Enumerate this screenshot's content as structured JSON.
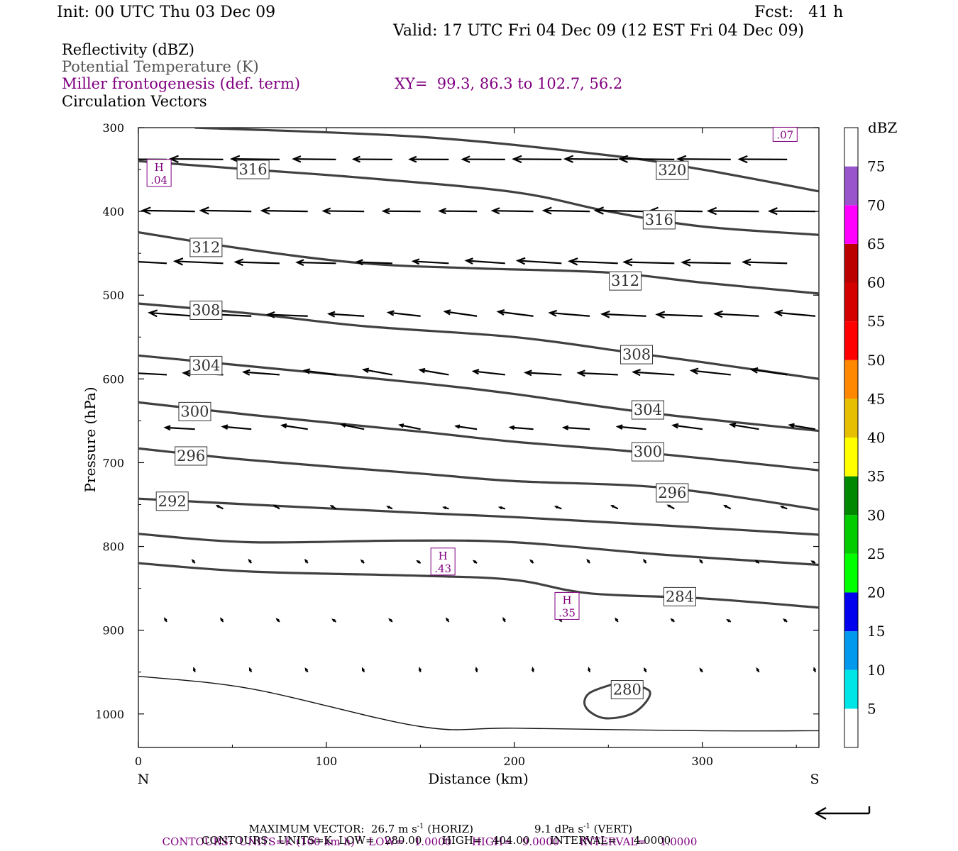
{
  "header": {
    "init": "Init: 00 UTC Thu 03 Dec 09",
    "fcst": "Fcst:   41 h",
    "valid": "Valid: 17 UTC Fri 04 Dec 09 (12 EST Fri 04 Dec 09)"
  },
  "legend": {
    "reflectivity": "Reflectivity (dBZ)",
    "theta": "Potential Temperature (K)",
    "frontogenesis": "Miller frontogenesis (def. term)",
    "xy": "XY=  99.3, 86.3 to 102.7, 56.2",
    "vectors": "Circulation Vectors"
  },
  "colors": {
    "theta": "#404040",
    "frontogenesis": "#800080",
    "vectors": "#000000"
  },
  "chart_data": {
    "type": "cross-section",
    "xlabel": "Distance (km)",
    "ylabel": "Pressure (hPa)",
    "xlim": [
      0,
      362
    ],
    "ylim": [
      1040,
      300
    ],
    "x_ticks": [
      0,
      100,
      200,
      300
    ],
    "y_ticks": [
      300,
      400,
      500,
      600,
      700,
      800,
      900,
      1000
    ],
    "x_start_label": "N",
    "x_end_label": "S",
    "theta_contours": [
      {
        "value": 320,
        "label": "320",
        "label_at": [
          284,
          351
        ],
        "points": [
          [
            30,
            300
          ],
          [
            150,
            311
          ],
          [
            250,
            333
          ],
          [
            300,
            350
          ],
          [
            362,
            376
          ]
        ]
      },
      {
        "value": 316,
        "label": "316",
        "label_at": [
          61,
          350
        ],
        "label2_at": [
          277,
          410
        ],
        "points": [
          [
            0,
            340
          ],
          [
            60,
            350
          ],
          [
            120,
            360
          ],
          [
            200,
            377
          ],
          [
            250,
            400
          ],
          [
            300,
            418
          ],
          [
            362,
            428
          ]
        ]
      },
      {
        "value": 312,
        "label": "312",
        "label_at": [
          36,
          443
        ],
        "label2_at": [
          259,
          483
        ],
        "points": [
          [
            0,
            425
          ],
          [
            60,
            446
          ],
          [
            120,
            462
          ],
          [
            180,
            468
          ],
          [
            250,
            473
          ],
          [
            300,
            485
          ],
          [
            362,
            498
          ]
        ]
      },
      {
        "value": 308,
        "label": "308",
        "label_at": [
          36,
          518
        ],
        "label2_at": [
          265,
          571
        ],
        "points": [
          [
            0,
            510
          ],
          [
            60,
            522
          ],
          [
            120,
            537
          ],
          [
            200,
            550
          ],
          [
            260,
            568
          ],
          [
            300,
            580
          ],
          [
            362,
            600
          ]
        ]
      },
      {
        "value": 304,
        "label": "304",
        "label_at": [
          36,
          584
        ],
        "label2_at": [
          271,
          637
        ],
        "points": [
          [
            0,
            572
          ],
          [
            60,
            585
          ],
          [
            150,
            605
          ],
          [
            200,
            618
          ],
          [
            270,
            640
          ],
          [
            362,
            662
          ]
        ]
      },
      {
        "value": 300,
        "label": "300",
        "label_at": [
          30,
          639
        ],
        "label2_at": [
          271,
          687
        ],
        "points": [
          [
            0,
            628
          ],
          [
            60,
            643
          ],
          [
            150,
            663
          ],
          [
            200,
            675
          ],
          [
            270,
            688
          ],
          [
            362,
            709
          ]
        ]
      },
      {
        "value": 296,
        "label": "296",
        "label_at": [
          28,
          692
        ],
        "label2_at": [
          284,
          736
        ],
        "points": [
          [
            0,
            683
          ],
          [
            60,
            697
          ],
          [
            150,
            713
          ],
          [
            200,
            722
          ],
          [
            280,
            730
          ],
          [
            362,
            756
          ]
        ]
      },
      {
        "value": 292,
        "label": "292",
        "label_at": [
          18,
          746
        ],
        "points": [
          [
            0,
            743
          ],
          [
            60,
            750
          ],
          [
            150,
            760
          ],
          [
            200,
            765
          ],
          [
            280,
            775
          ],
          [
            362,
            786
          ]
        ]
      },
      {
        "value": 288,
        "label": "",
        "points": [
          [
            0,
            785
          ],
          [
            60,
            795
          ],
          [
            140,
            793
          ],
          [
            200,
            795
          ],
          [
            280,
            810
          ],
          [
            362,
            822
          ]
        ]
      },
      {
        "value": 284,
        "label": "284",
        "label_at": [
          288,
          860
        ],
        "points": [
          [
            0,
            820
          ],
          [
            60,
            830
          ],
          [
            150,
            835
          ],
          [
            200,
            840
          ],
          [
            240,
            856
          ],
          [
            300,
            862
          ],
          [
            362,
            873
          ]
        ]
      },
      {
        "value": 280,
        "label": "280",
        "label_at": [
          260,
          971
        ],
        "points": [
          [
            0,
            955
          ],
          [
            60,
            970
          ],
          [
            150,
            1015
          ],
          [
            200,
            1017
          ],
          [
            300,
            1020
          ],
          [
            362,
            1020
          ]
        ]
      }
    ],
    "contour_280_loop": [
      [
        256,
        962
      ],
      [
        272,
        973
      ],
      [
        264,
        998
      ],
      [
        248,
        1005
      ],
      [
        238,
        992
      ],
      [
        240,
        975
      ]
    ],
    "frontogenesis_maxima": [
      {
        "label": "H",
        "value": ".04",
        "x": 11,
        "p": 354
      },
      {
        "label": "H",
        "value": ".43",
        "x": 162,
        "p": 818
      },
      {
        "label": "H",
        "value": ".35",
        "x": 228,
        "p": 871
      },
      {
        "label": "",
        "value": ".07",
        "x": 344,
        "p": 308
      }
    ],
    "reflectivity_scale": {
      "unit": "dBZ",
      "labels": [
        "5",
        "10",
        "15",
        "20",
        "25",
        "30",
        "35",
        "40",
        "45",
        "50",
        "55",
        "60",
        "65",
        "70",
        "75"
      ],
      "colors": [
        "#ffffff",
        "#00e5e5",
        "#0099ee",
        "#0000ee",
        "#00ff00",
        "#00cc00",
        "#008800",
        "#ffff00",
        "#e5bf00",
        "#ff8800",
        "#ff0000",
        "#d40000",
        "#bb0000",
        "#ff00ff",
        "#9955cc",
        "#ffffff"
      ]
    },
    "vectors": {
      "description": "circulation vectors; u in m/s along the section (negative = toward N), w in dPa/s",
      "rows": [
        {
          "p": 338,
          "u": -24,
          "w": 0.3
        },
        {
          "p": 400,
          "u": -23,
          "w": 0.5
        },
        {
          "p": 462,
          "u": -22,
          "w": 1.5
        },
        {
          "p": 525,
          "u": -20,
          "w": 2.5
        },
        {
          "p": 595,
          "u": -18,
          "w": 2.8
        },
        {
          "p": 660,
          "u": -13,
          "w": 2.5
        },
        {
          "p": 755,
          "u": -3,
          "w": 2.0
        },
        {
          "p": 820,
          "u": -1.5,
          "w": 2.5
        },
        {
          "p": 890,
          "u": -0.5,
          "w": 1.0
        },
        {
          "p": 950,
          "u": -0.3,
          "w": 1.5
        }
      ]
    }
  },
  "footer": {
    "max_vector": "MAXIMUM VECTOR:  26.7 m s",
    "max_vector_exp": "-1",
    "max_vector_tail": " (HORIZ)",
    "max_vert": "9.1 dPa s",
    "max_vert_exp": "-1",
    "max_vert_tail": " (VERT)",
    "contours1": "CONTOURS:  UNITS=K (100 km h)",
    "contours1_exp": "-1",
    "contours1_tail": "  LOW=   1.0000      HIGH=   9.0000      INTERVAL=    1.0000",
    "contours2": "CONTOURS:  UNITS=K  LOW=   280.00      HIGH=   404.00      INTERVAL=     4.0000"
  }
}
